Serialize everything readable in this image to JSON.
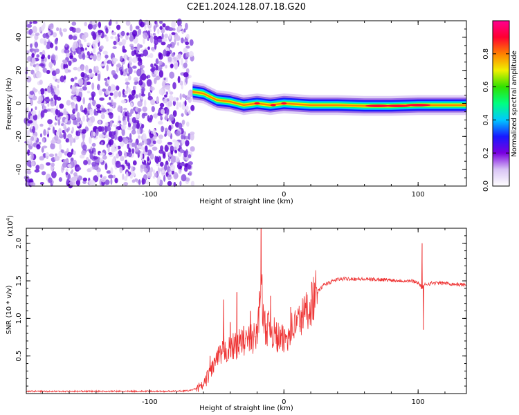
{
  "title": "C2E1.2024.128.07.18.G20",
  "chart_data": [
    {
      "type": "heatmap",
      "xlabel": "Height of straight line (km)",
      "ylabel": "Frequency (Hz)",
      "xlim": [
        -192,
        136
      ],
      "ylim": [
        -50,
        50
      ],
      "xticks": [
        -100,
        0,
        100
      ],
      "xtick_labels": [
        "-100",
        "0",
        "100"
      ],
      "yticks": [
        -40,
        -20,
        0,
        20,
        40
      ],
      "ytick_labels": [
        "-40",
        "-20",
        "0",
        "20",
        "40"
      ],
      "noise_region_x": [
        -192,
        -68
      ],
      "signal_region_x": [
        -68,
        136
      ],
      "signal_ridge": [
        {
          "x": -68,
          "f": 7
        },
        {
          "x": -60,
          "f": 6
        },
        {
          "x": -50,
          "f": 2
        },
        {
          "x": -40,
          "f": 1
        },
        {
          "x": -30,
          "f": -1
        },
        {
          "x": -20,
          "f": 0
        },
        {
          "x": -10,
          "f": -1
        },
        {
          "x": 0,
          "f": 0
        },
        {
          "x": 20,
          "f": -1
        },
        {
          "x": 40,
          "f": -1
        },
        {
          "x": 60,
          "f": -1.5
        },
        {
          "x": 80,
          "f": -1.5
        },
        {
          "x": 100,
          "f": -1
        },
        {
          "x": 120,
          "f": -1
        },
        {
          "x": 136,
          "f": -1
        }
      ],
      "colorbar": {
        "label": "Normalized spectral amplitude",
        "range": [
          0,
          1
        ],
        "ticks": [
          0.0,
          0.2,
          0.4,
          0.6,
          0.8
        ],
        "tick_labels": [
          "0.0",
          "0.2",
          "0.4",
          "0.6",
          "0.8"
        ],
        "colors": [
          "#ffffff",
          "#d9c4f5",
          "#7a00e0",
          "#1818ff",
          "#00c8ff",
          "#00ff80",
          "#30e000",
          "#f0f000",
          "#ff8000",
          "#ff0030",
          "#ff0090"
        ]
      }
    },
    {
      "type": "line",
      "xlabel": "Height of straight line (km)",
      "ylabel": "SNR (10 * v/v)",
      "y_multiplier": "(x10",
      "y_multiplier_exp": "4",
      "y_multiplier_close": ")",
      "xlim": [
        -192,
        136
      ],
      "ylim": [
        0,
        2.2
      ],
      "xticks": [
        -100,
        0,
        100
      ],
      "xtick_labels": [
        "-100",
        "0",
        "100"
      ],
      "yticks": [
        0.5,
        1.0,
        1.5,
        2.0
      ],
      "ytick_labels": [
        "0.5",
        "1.0",
        "1.5",
        "2.0"
      ],
      "series": [
        {
          "color": "#ee3333",
          "x": [
            -192,
            -150,
            -100,
            -80,
            -70,
            -60,
            -55,
            -50,
            -45,
            -40,
            -35,
            -30,
            -25,
            -20,
            -17,
            -15,
            -10,
            -5,
            0,
            5,
            10,
            15,
            20,
            25,
            30,
            40,
            50,
            60,
            70,
            80,
            90,
            95,
            100,
            103,
            105,
            110,
            120,
            130,
            136
          ],
          "y": [
            0.03,
            0.03,
            0.03,
            0.03,
            0.04,
            0.1,
            0.3,
            0.45,
            0.55,
            0.6,
            0.65,
            0.7,
            0.72,
            0.75,
            1.5,
            0.9,
            0.85,
            0.75,
            0.7,
            0.85,
            0.95,
            1.05,
            1.2,
            1.35,
            1.45,
            1.52,
            1.53,
            1.52,
            1.52,
            1.51,
            1.5,
            1.5,
            1.48,
            1.4,
            1.45,
            1.47,
            1.47,
            1.45,
            1.45
          ],
          "spikes": [
            {
              "x": -55,
              "y": 0.5
            },
            {
              "x": -45,
              "y": 1.25
            },
            {
              "x": -40,
              "y": 0.95
            },
            {
              "x": -35,
              "y": 1.35
            },
            {
              "x": -30,
              "y": 0.9
            },
            {
              "x": -25,
              "y": 1.1
            },
            {
              "x": -20,
              "y": 0.9
            },
            {
              "x": -17,
              "y": 2.2
            },
            {
              "x": -10,
              "y": 1.3
            },
            {
              "x": -5,
              "y": 0.55
            },
            {
              "x": 5,
              "y": 1.15
            },
            {
              "x": 15,
              "y": 1.25
            },
            {
              "x": 103,
              "y": 2.0
            },
            {
              "x": 104,
              "y": 0.85
            }
          ]
        }
      ]
    }
  ]
}
